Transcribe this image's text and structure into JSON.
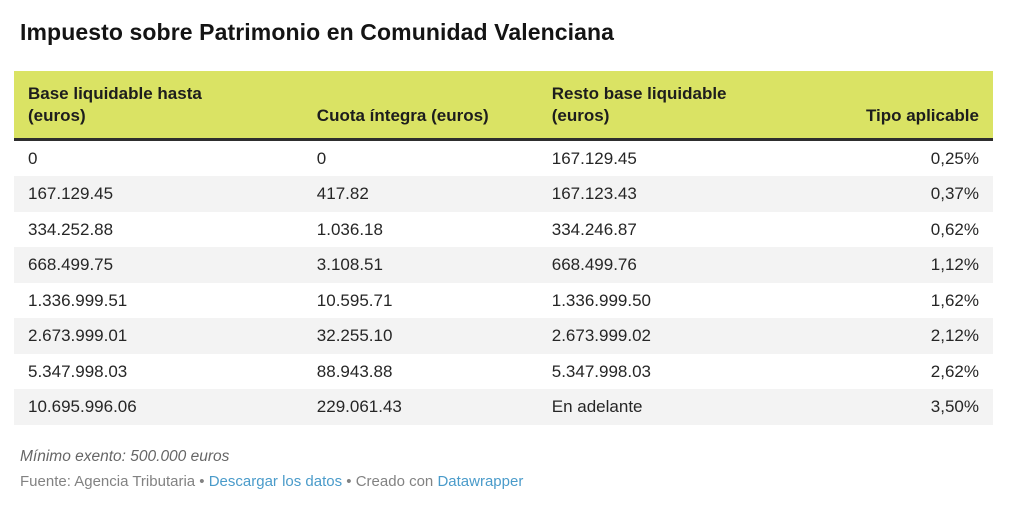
{
  "title": "Impuesto sobre Patrimonio en Comunidad Valenciana",
  "chart_data": {
    "type": "table",
    "title": "Impuesto sobre Patrimonio en Comunidad Valenciana",
    "columns": [
      "Base liquidable hasta (euros)",
      "Cuota íntegra (euros)",
      "Resto base liquidable (euros)",
      "Tipo aplicable"
    ],
    "rows": [
      [
        "0",
        "0",
        "167.129.45",
        "0,25%"
      ],
      [
        "167.129.45",
        "417.82",
        "167.123.43",
        "0,37%"
      ],
      [
        "334.252.88",
        "1.036.18",
        "334.246.87",
        "0,62%"
      ],
      [
        "668.499.75",
        "3.108.51",
        "668.499.76",
        "1,12%"
      ],
      [
        "1.336.999.51",
        "10.595.71",
        "1.336.999.50",
        "1,62%"
      ],
      [
        "2.673.999.01",
        "32.255.10",
        "2.673.999.02",
        "2,12%"
      ],
      [
        "5.347.998.03",
        "88.943.88",
        "5.347.998.03",
        "2,62%"
      ],
      [
        "10.695.996.06",
        "229.061.43",
        "En adelante",
        "3,50%"
      ]
    ],
    "note": "Mínimo exento: 500.000 euros",
    "source": "Agencia Tributaria"
  },
  "table": {
    "headers": [
      "Base liquidable hasta\n(euros)",
      "Cuota íntegra (euros)",
      "Resto base liquidable\n(euros)",
      "Tipo aplicable"
    ]
  },
  "footer": {
    "note": "Mínimo exento: 500.000 euros",
    "source_prefix": "Fuente: ",
    "source_name": "Agencia Tributaria",
    "separator1": " • ",
    "download_link": "Descargar los datos",
    "separator2": " • ",
    "attribution_prefix": "Creado con ",
    "attribution_link": "Datawrapper"
  },
  "colors": {
    "header_bg": "#dae364",
    "header_border": "#2e2e2e",
    "zebra_row": "#f3f3f3",
    "cell_text": "#262626",
    "link": "#4a9bca",
    "note_text": "#666666",
    "source_text": "#828282"
  }
}
